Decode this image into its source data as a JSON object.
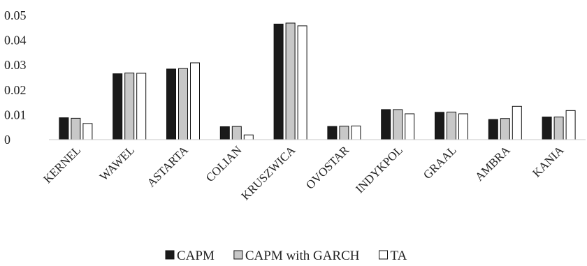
{
  "chart_data": {
    "type": "bar",
    "title": "",
    "xlabel": "",
    "ylabel": "",
    "ylim": [
      0,
      0.05
    ],
    "yticks": [
      0,
      0.01,
      0.02,
      0.03,
      0.04,
      0.05
    ],
    "ytick_labels": [
      "0",
      "0.01",
      "0.02",
      "0.03",
      "0.04",
      "0.05"
    ],
    "grid": false,
    "legend_position": "bottom",
    "categories": [
      "KERNEL",
      "WAWEL",
      "ASTARTA",
      "COLIAN",
      "KRUSZWICA",
      "OVOSTAR",
      "INDYKPOL",
      "GRAAL",
      "AMBRA",
      "KANIA"
    ],
    "series": [
      {
        "name": "CAPM",
        "color": "#1a1a1a",
        "values": [
          0.0088,
          0.0265,
          0.0284,
          0.0052,
          0.0465,
          0.0053,
          0.0121,
          0.011,
          0.0081,
          0.0091
        ]
      },
      {
        "name": "CAPM with GARCH",
        "color": "#c8c8c8",
        "values": [
          0.0086,
          0.0268,
          0.0286,
          0.0053,
          0.0469,
          0.0054,
          0.0121,
          0.0111,
          0.0085,
          0.0091
        ]
      },
      {
        "name": "TA",
        "color": "#ffffff",
        "values": [
          0.0065,
          0.0267,
          0.0309,
          0.0019,
          0.0458,
          0.0055,
          0.0104,
          0.0104,
          0.0134,
          0.0117
        ]
      }
    ]
  }
}
